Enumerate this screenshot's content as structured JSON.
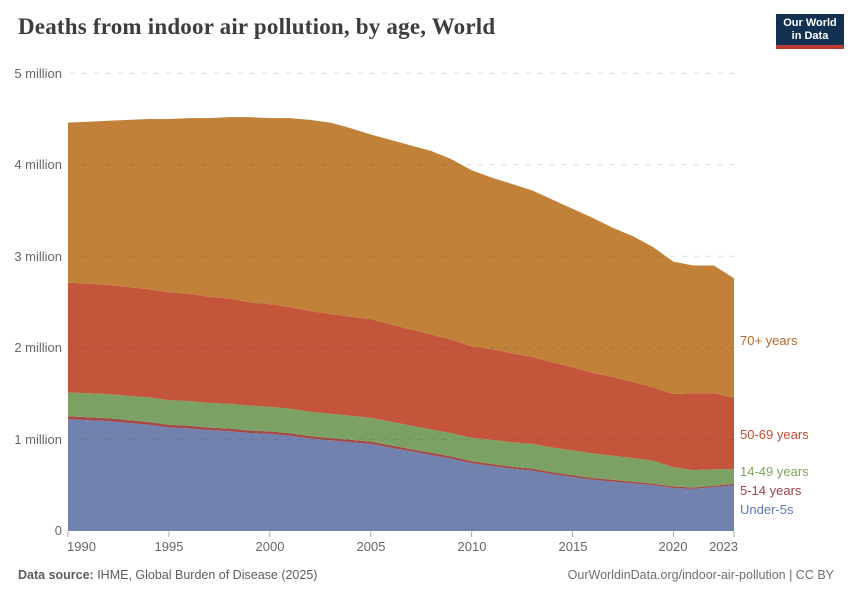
{
  "header": {
    "title": "Deaths from indoor air pollution, by age, World",
    "logo_line1": "Our World",
    "logo_line2": "in Data",
    "logo_bg": "#12304f",
    "logo_bar": "#be3a34"
  },
  "chart_data": {
    "type": "area",
    "stacked": true,
    "title": "Deaths from indoor air pollution, by age, World",
    "unit": "deaths per year",
    "ylim": [
      0,
      5000000
    ],
    "grid": "dashed horizontal",
    "legend_position": "right of plot, colored text labels",
    "x": [
      1990,
      1991,
      1992,
      1993,
      1994,
      1995,
      1996,
      1997,
      1998,
      1999,
      2000,
      2001,
      2002,
      2003,
      2004,
      2005,
      2006,
      2007,
      2008,
      2009,
      2010,
      2011,
      2012,
      2013,
      2014,
      2015,
      2016,
      2017,
      2018,
      2019,
      2020,
      2021,
      2022,
      2023
    ],
    "values_unit": "millions of deaths",
    "series": [
      {
        "name": "Under-5s",
        "color": "#7082ad",
        "label_color": "#6076b7",
        "values": [
          1.22,
          1.21,
          1.2,
          1.18,
          1.16,
          1.13,
          1.12,
          1.1,
          1.09,
          1.07,
          1.06,
          1.04,
          1.01,
          0.99,
          0.97,
          0.95,
          0.91,
          0.87,
          0.83,
          0.79,
          0.74,
          0.71,
          0.68,
          0.66,
          0.62,
          0.59,
          0.56,
          0.54,
          0.52,
          0.5,
          0.47,
          0.46,
          0.48,
          0.5
        ]
      },
      {
        "name": "5-14 years",
        "color": "#a34946",
        "label_color": "#a2414a",
        "values": [
          0.033,
          0.032,
          0.032,
          0.031,
          0.031,
          0.03,
          0.03,
          0.029,
          0.029,
          0.028,
          0.028,
          0.027,
          0.027,
          0.026,
          0.026,
          0.026,
          0.025,
          0.025,
          0.024,
          0.024,
          0.023,
          0.022,
          0.022,
          0.021,
          0.021,
          0.02,
          0.019,
          0.019,
          0.018,
          0.017,
          0.016,
          0.015,
          0.015,
          0.015
        ]
      },
      {
        "name": "14-49 years",
        "color": "#7ca165",
        "label_color": "#81a35e",
        "values": [
          0.26,
          0.262,
          0.264,
          0.266,
          0.268,
          0.27,
          0.27,
          0.27,
          0.27,
          0.27,
          0.27,
          0.268,
          0.266,
          0.264,
          0.262,
          0.26,
          0.258,
          0.256,
          0.255,
          0.253,
          0.255,
          0.265,
          0.268,
          0.27,
          0.27,
          0.27,
          0.268,
          0.262,
          0.258,
          0.25,
          0.21,
          0.19,
          0.18,
          0.16
        ]
      },
      {
        "name": "50-69 years",
        "color": "#c4543a",
        "label_color": "#c84b33",
        "values": [
          1.2,
          1.198,
          1.192,
          1.188,
          1.182,
          1.178,
          1.17,
          1.16,
          1.15,
          1.13,
          1.12,
          1.11,
          1.1,
          1.09,
          1.082,
          1.078,
          1.062,
          1.05,
          1.038,
          1.02,
          1.0,
          0.99,
          0.97,
          0.95,
          0.93,
          0.91,
          0.88,
          0.86,
          0.83,
          0.8,
          0.8,
          0.84,
          0.83,
          0.78
        ]
      },
      {
        "name": "70+ years",
        "color": "#c18139",
        "label_color": "#b76a2c",
        "values": [
          1.747,
          1.768,
          1.792,
          1.825,
          1.859,
          1.892,
          1.92,
          1.951,
          1.981,
          2.022,
          2.032,
          2.065,
          2.087,
          2.09,
          2.06,
          2.016,
          2.015,
          2.009,
          2.003,
          1.973,
          1.922,
          1.873,
          1.85,
          1.819,
          1.779,
          1.73,
          1.693,
          1.629,
          1.594,
          1.533,
          1.444,
          1.395,
          1.395,
          1.305
        ]
      }
    ],
    "y_ticks": [
      {
        "value": 0,
        "label": "0"
      },
      {
        "value": 1,
        "label": "1 million"
      },
      {
        "value": 2,
        "label": "2 million"
      },
      {
        "value": 3,
        "label": "3 million"
      },
      {
        "value": 4,
        "label": "4 million"
      },
      {
        "value": 5,
        "label": "5 million"
      }
    ],
    "x_ticks": [
      1990,
      1995,
      2000,
      2005,
      2010,
      2015,
      2020,
      2023
    ]
  },
  "footer": {
    "source_label": "Data source:",
    "source_text": " IHME, Global Burden of Disease (2025)",
    "link_text": "OurWorldinData.org/indoor-air-pollution | CC BY"
  }
}
